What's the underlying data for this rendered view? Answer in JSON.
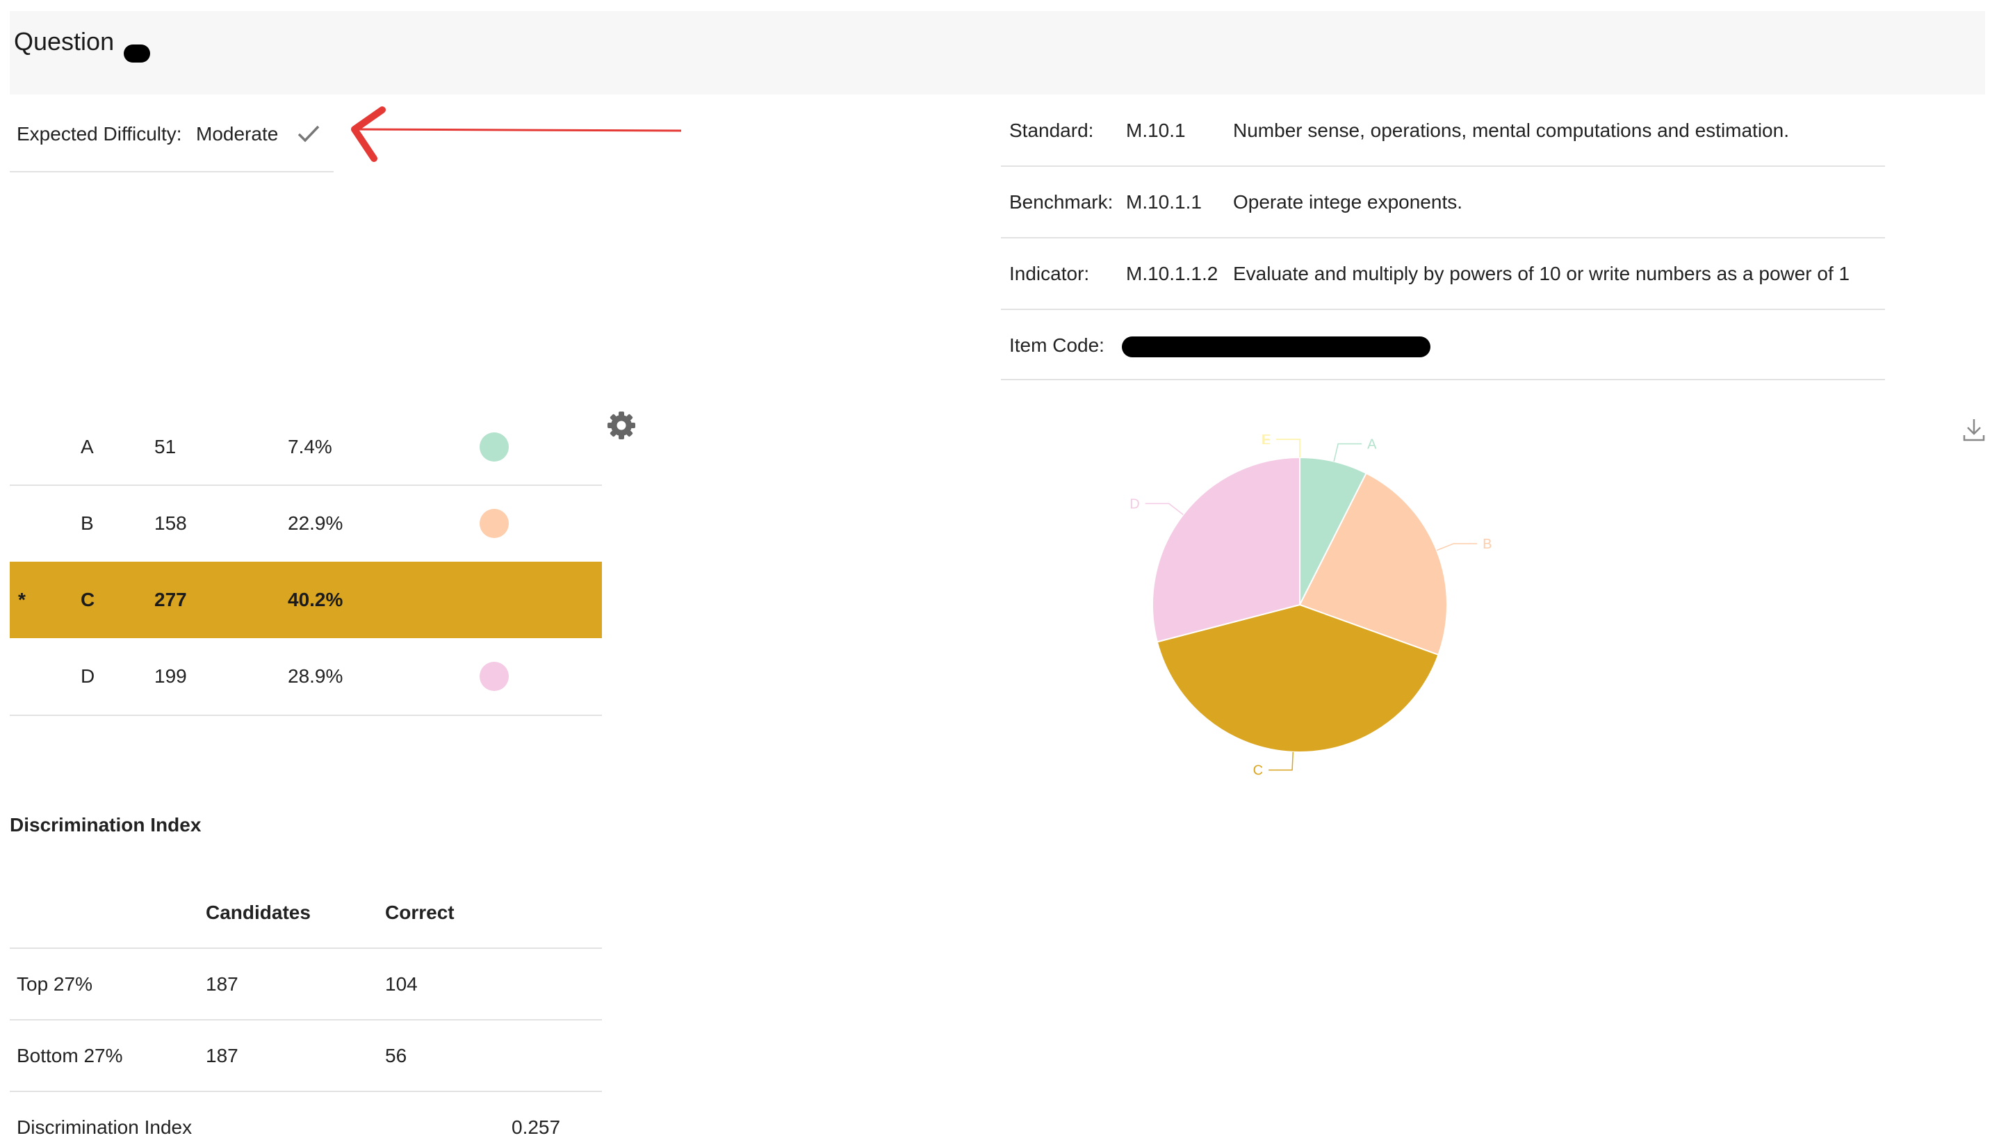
{
  "header": {
    "title": "Question"
  },
  "difficulty": {
    "label": "Expected Difficulty:",
    "value": "Moderate"
  },
  "info": {
    "standard": {
      "label": "Standard:",
      "code": "M.10.1",
      "desc": "Number sense, operations, mental computations and estimation."
    },
    "benchmark": {
      "label": "Benchmark:",
      "code": "M.10.1.1",
      "desc": "Operate intege exponents."
    },
    "indicator": {
      "label": "Indicator:",
      "code": "M.10.1.1.2",
      "desc": "Evaluate and multiply by powers of 10 or write numbers as a power of 1"
    },
    "item_code": {
      "label": "Item Code:"
    }
  },
  "options": [
    {
      "marker": "",
      "letter": "A",
      "count": "51",
      "percent": "7.4%",
      "color": "#b3e2cd",
      "selected": false
    },
    {
      "marker": "",
      "letter": "B",
      "count": "158",
      "percent": "22.9%",
      "color": "#fdcdac",
      "selected": false
    },
    {
      "marker": "*",
      "letter": "C",
      "count": "277",
      "percent": "40.2%",
      "color": "#daa520",
      "selected": true
    },
    {
      "marker": "",
      "letter": "D",
      "count": "199",
      "percent": "28.9%",
      "color": "#f4cae4",
      "selected": false
    }
  ],
  "discrimination": {
    "title": "Discrimination Index",
    "headers": {
      "candidates": "Candidates",
      "correct": "Correct"
    },
    "rows": [
      {
        "label": "Top 27%",
        "candidates": "187",
        "correct": "104"
      },
      {
        "label": "Bottom 27%",
        "candidates": "187",
        "correct": "56"
      }
    ],
    "index": {
      "label": "Discrimination Index",
      "value": "0.257"
    }
  },
  "chart_data": {
    "type": "pie",
    "labels": [
      "A",
      "B",
      "C",
      "D",
      "E",
      "F"
    ],
    "values": [
      51,
      158,
      277,
      199,
      0,
      0
    ],
    "colors": [
      "#b3e2cd",
      "#fdcdac",
      "#daa520",
      "#f4cae4",
      "#fff2ae",
      "#fff2ae"
    ]
  },
  "icons": {
    "check": "check-icon",
    "gear": "gear-icon",
    "download": "download-icon"
  }
}
